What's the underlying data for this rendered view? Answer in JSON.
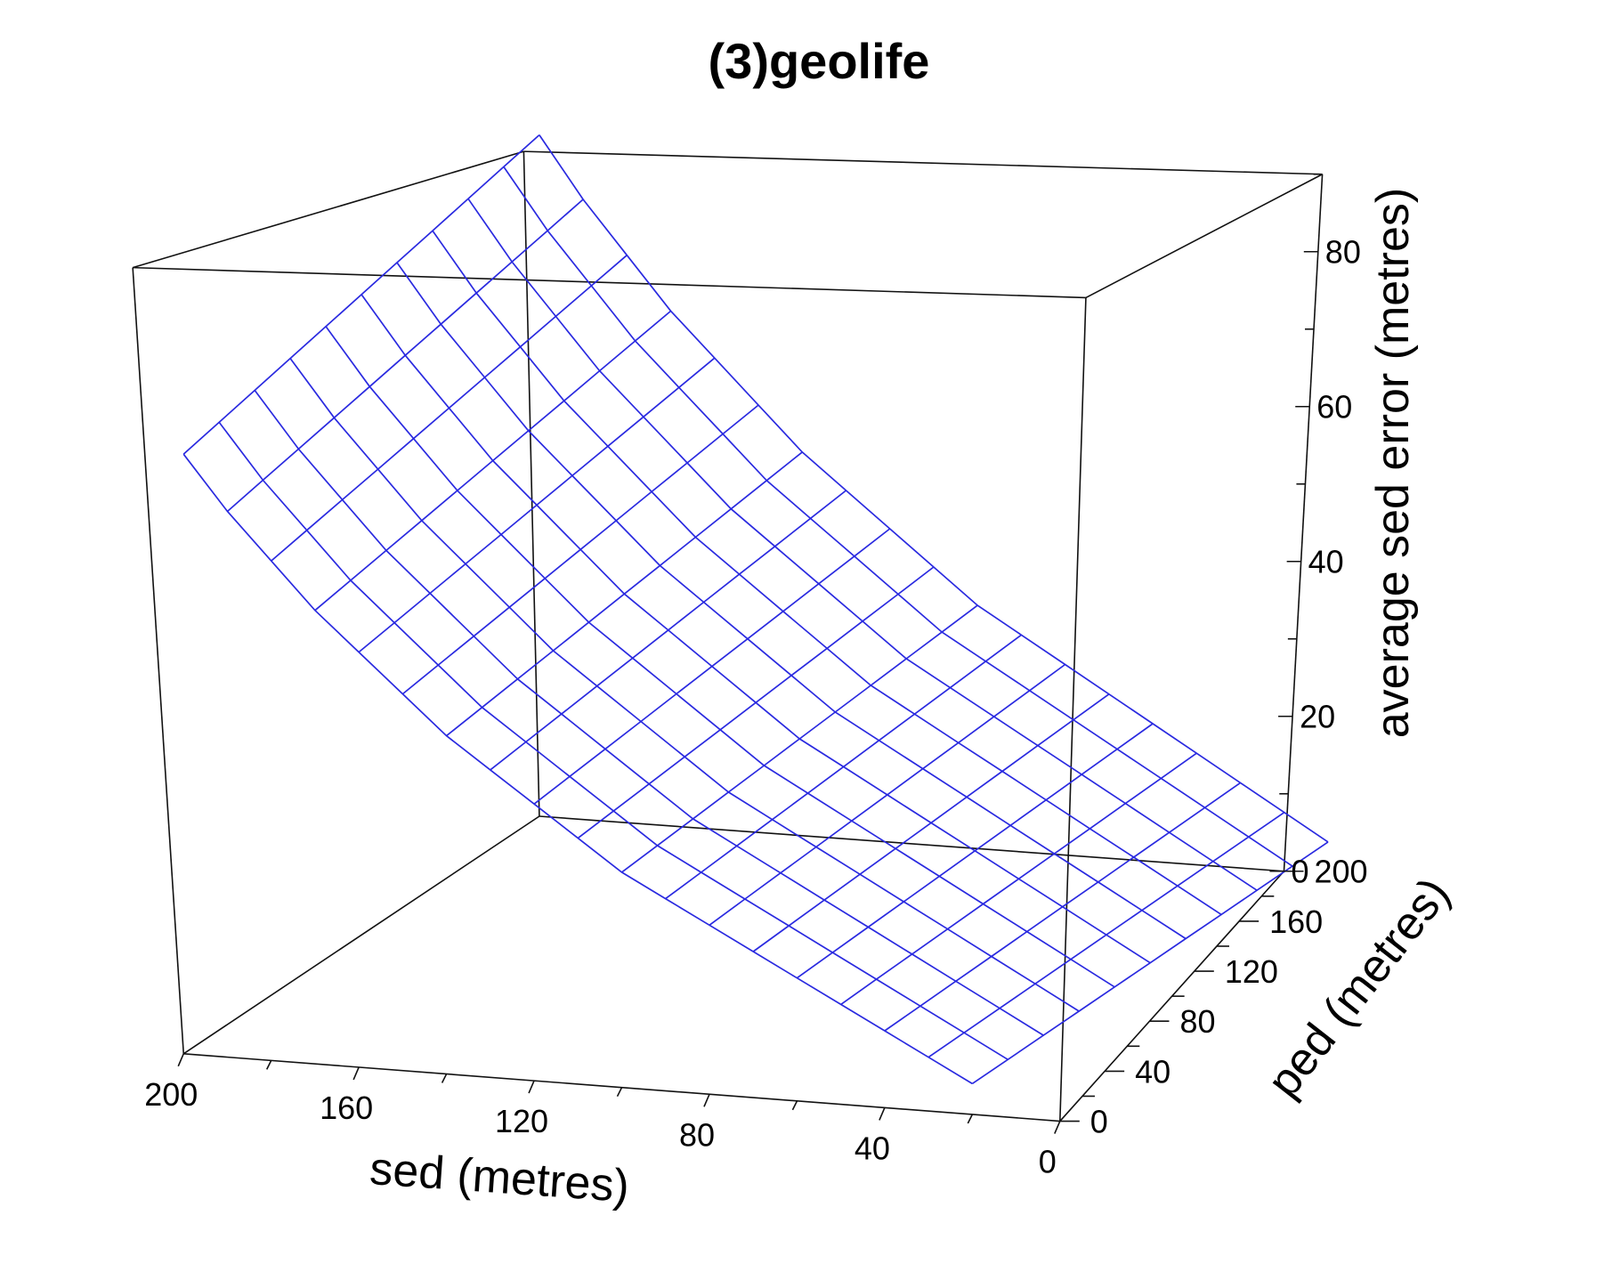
{
  "chart_data": {
    "type": "surface",
    "title": "(3)geolife",
    "xlabel": "sed (metres)",
    "ylabel": "ped (metres)",
    "zlabel": "average sed error (metres)",
    "x_ticks": [
      "200",
      "160",
      "120",
      "80",
      "40",
      "0"
    ],
    "y_ticks": [
      "0",
      "40",
      "80",
      "120",
      "160",
      "200"
    ],
    "z_ticks": [
      "0",
      "20",
      "40",
      "60",
      "80"
    ],
    "xlim": [
      0,
      200
    ],
    "ylim": [
      0,
      200
    ],
    "zlim": [
      0,
      90
    ],
    "mesh_color": "#2a2ae0",
    "grid": false,
    "surface": {
      "sed_values": [
        20,
        30,
        40,
        50,
        60,
        70,
        80,
        90,
        100,
        110,
        120,
        130,
        140,
        150,
        160,
        170,
        180,
        190,
        200
      ],
      "ped_values": [
        200,
        180,
        160,
        140,
        120,
        100,
        80,
        60,
        40,
        20,
        0
      ],
      "error_at_sed": [
        4,
        7,
        10,
        13,
        16,
        19,
        22,
        25,
        28,
        32,
        36,
        40,
        44,
        49,
        54,
        59,
        65,
        71,
        78
      ]
    }
  }
}
